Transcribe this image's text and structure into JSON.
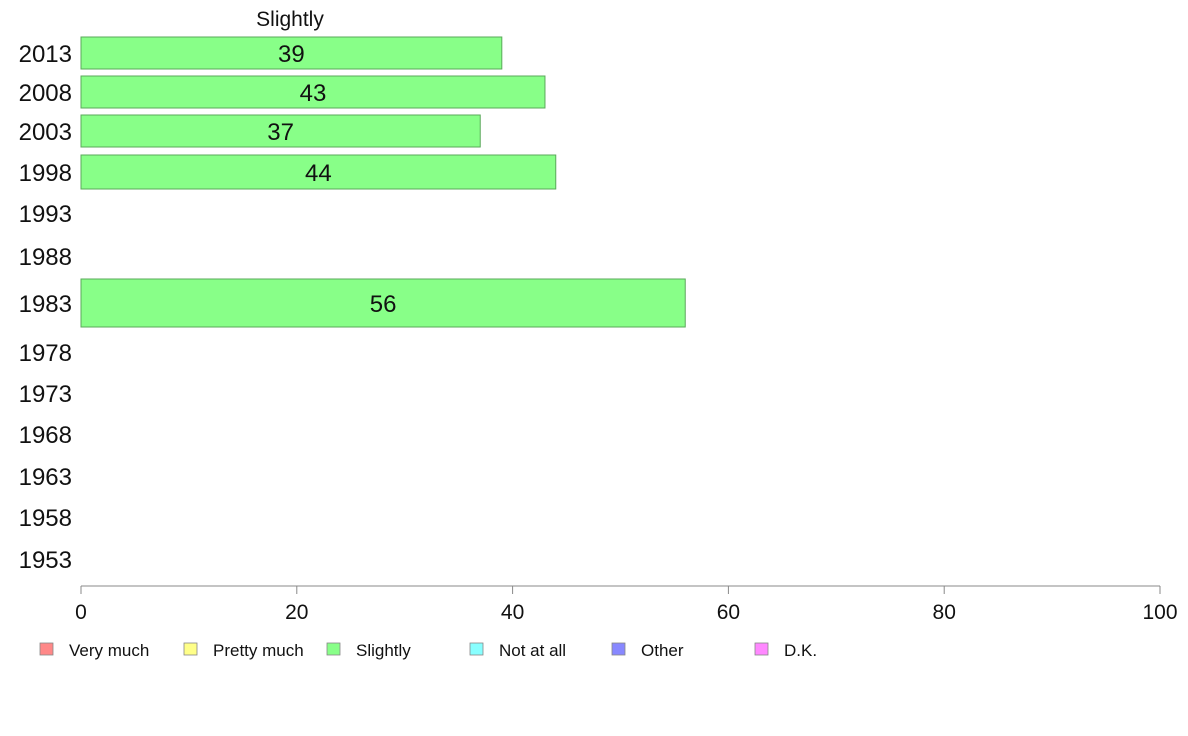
{
  "chart_data": {
    "type": "bar",
    "orientation": "horizontal",
    "title": "Slightly",
    "categories": [
      "2013",
      "2008",
      "2003",
      "1998",
      "1993",
      "1988",
      "1983",
      "1978",
      "1973",
      "1968",
      "1963",
      "1958",
      "1953"
    ],
    "series": [
      {
        "name": "Slightly",
        "color": "#88ff88",
        "values": [
          39,
          43,
          37,
          44,
          null,
          null,
          56,
          null,
          null,
          null,
          null,
          null,
          null
        ]
      }
    ],
    "data_labels": [
      "39",
      "43",
      "37",
      "44",
      "",
      "",
      "56",
      "",
      "",
      "",
      "",
      "",
      ""
    ],
    "xlim": [
      0,
      100
    ],
    "xticks": [
      0,
      20,
      40,
      60,
      80,
      100
    ],
    "legend": {
      "placement": "bottom",
      "entries": [
        {
          "label": "Very much",
          "color": "#ff8888"
        },
        {
          "label": "Pretty much",
          "color": "#ffff88"
        },
        {
          "label": "Slightly",
          "color": "#88ff88"
        },
        {
          "label": "Not at all",
          "color": "#88ffff"
        },
        {
          "label": "Other",
          "color": "#8888ff"
        },
        {
          "label": "D.K.",
          "color": "#ff88ff"
        }
      ]
    }
  }
}
